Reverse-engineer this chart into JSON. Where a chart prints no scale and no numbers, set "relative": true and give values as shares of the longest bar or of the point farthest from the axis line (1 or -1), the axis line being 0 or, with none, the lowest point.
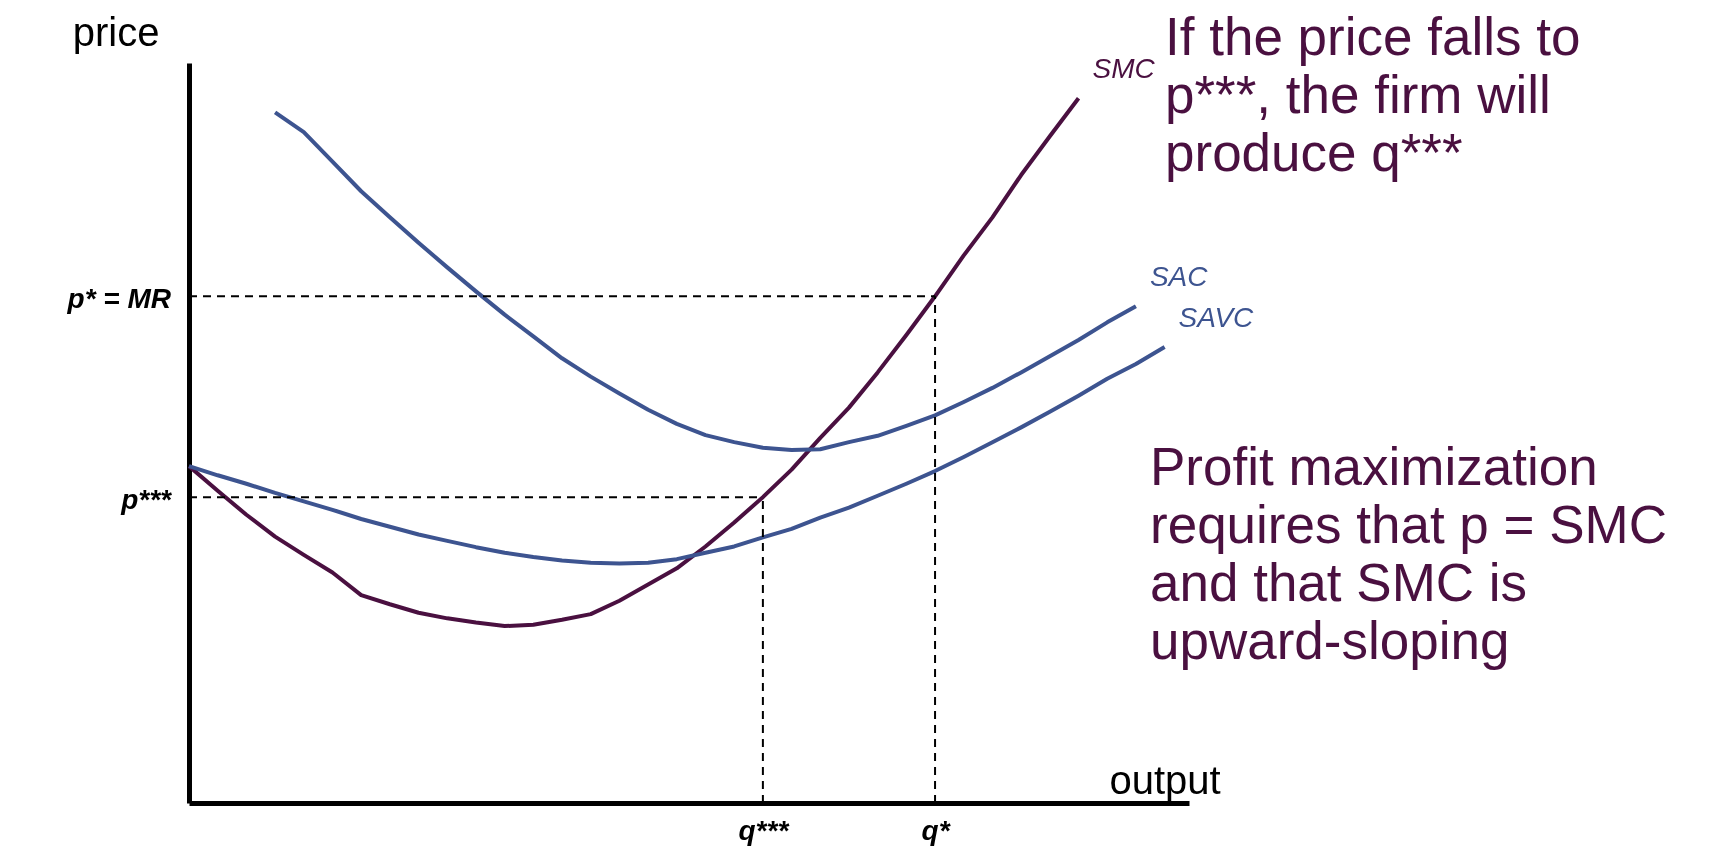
{
  "chart_data": {
    "type": "line",
    "relative": true,
    "xlabel": "output",
    "ylabel": "price",
    "categories": [
      null,
      null,
      null,
      null,
      null,
      null,
      null,
      null,
      null,
      null,
      null,
      null,
      null,
      null,
      null,
      null,
      null,
      null,
      null,
      null,
      "q***",
      null,
      null,
      null,
      null,
      null,
      "q*",
      null,
      null,
      null,
      null,
      null,
      null,
      null,
      null
    ],
    "series": [
      {
        "name": "SMC",
        "color": "#4a1040",
        "values": [
          0.478,
          0.443,
          0.409,
          0.378,
          0.352,
          0.327,
          0.295,
          0.282,
          0.27,
          0.262,
          0.256,
          0.251,
          0.253,
          0.26,
          0.268,
          0.287,
          0.31,
          0.333,
          0.364,
          0.398,
          0.434,
          0.473,
          0.518,
          0.561,
          0.611,
          0.664,
          0.719,
          0.777,
          0.831,
          0.891,
          0.946,
          1.0,
          null,
          null,
          null
        ]
      },
      {
        "name": "SAC",
        "color": "#3d5490",
        "values": [
          null,
          null,
          null,
          0.98,
          0.952,
          0.91,
          0.868,
          0.831,
          0.795,
          0.76,
          0.726,
          0.693,
          0.662,
          0.631,
          0.605,
          0.581,
          0.558,
          0.538,
          0.522,
          0.512,
          0.504,
          0.501,
          0.502,
          0.512,
          0.521,
          0.535,
          0.55,
          0.569,
          0.589,
          0.611,
          0.634,
          0.657,
          0.682,
          0.705,
          null
        ]
      },
      {
        "name": "SAVC",
        "color": "#3d5490",
        "values": [
          0.478,
          0.465,
          0.453,
          0.44,
          0.428,
          0.416,
          0.403,
          0.392,
          0.381,
          0.372,
          0.363,
          0.355,
          0.349,
          0.344,
          0.341,
          0.34,
          0.341,
          0.346,
          0.355,
          0.364,
          0.377,
          0.389,
          0.405,
          0.419,
          0.436,
          0.453,
          0.471,
          0.491,
          0.512,
          0.533,
          0.555,
          0.578,
          0.602,
          0.623,
          0.647
        ]
      }
    ],
    "ref_lines": [
      {
        "axis": "y",
        "value": 0.719,
        "label": "p* = MR",
        "line_style": "dashed"
      },
      {
        "axis": "x",
        "value": "q*",
        "line_style": "dashed"
      },
      {
        "axis": "y",
        "value": 0.434,
        "label": "p***",
        "line_style": "dashed"
      },
      {
        "axis": "x",
        "value": "q***",
        "line_style": "dashed"
      }
    ],
    "annotations": [
      "If the price falls to p***, the firm will produce q***",
      "Profit maximization requires that p = SMC and that SMC is upward-sloping"
    ]
  }
}
